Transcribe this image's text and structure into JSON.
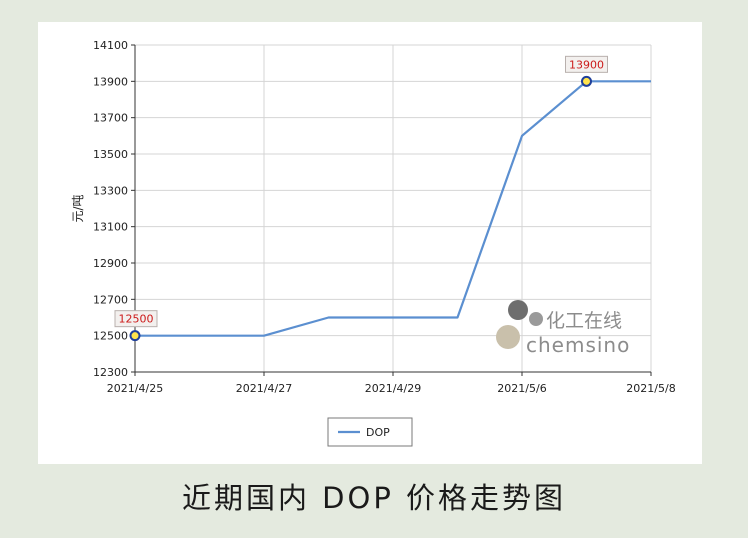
{
  "caption": "近期国内 DOP 价格走势图",
  "chart_data": {
    "type": "line",
    "ylabel": "元/吨",
    "ylim": [
      12300,
      14100
    ],
    "yticks": [
      12300,
      12500,
      12700,
      12900,
      13100,
      13300,
      13500,
      13700,
      13900,
      14100
    ],
    "xticks": [
      "2021/4/25",
      "2021/4/27",
      "2021/4/29",
      "2021/5/6",
      "2021/5/8"
    ],
    "grid": true,
    "legend_position": "bottom",
    "series": [
      {
        "name": "DOP",
        "color": "#5b8fd0",
        "points": [
          {
            "x": 0,
            "y": 12500
          },
          {
            "x": 1,
            "y": 12500
          },
          {
            "x": 1.5,
            "y": 12600
          },
          {
            "x": 2.5,
            "y": 12600
          },
          {
            "x": 3,
            "y": 13600
          },
          {
            "x": 3.5,
            "y": 13900
          },
          {
            "x": 4,
            "y": 13900
          }
        ]
      }
    ],
    "annotations": [
      {
        "point": 0,
        "label": "12500"
      },
      {
        "point": 5,
        "label": "13900"
      }
    ]
  },
  "watermark": {
    "cn": "化工在线",
    "en": "chemsino"
  }
}
